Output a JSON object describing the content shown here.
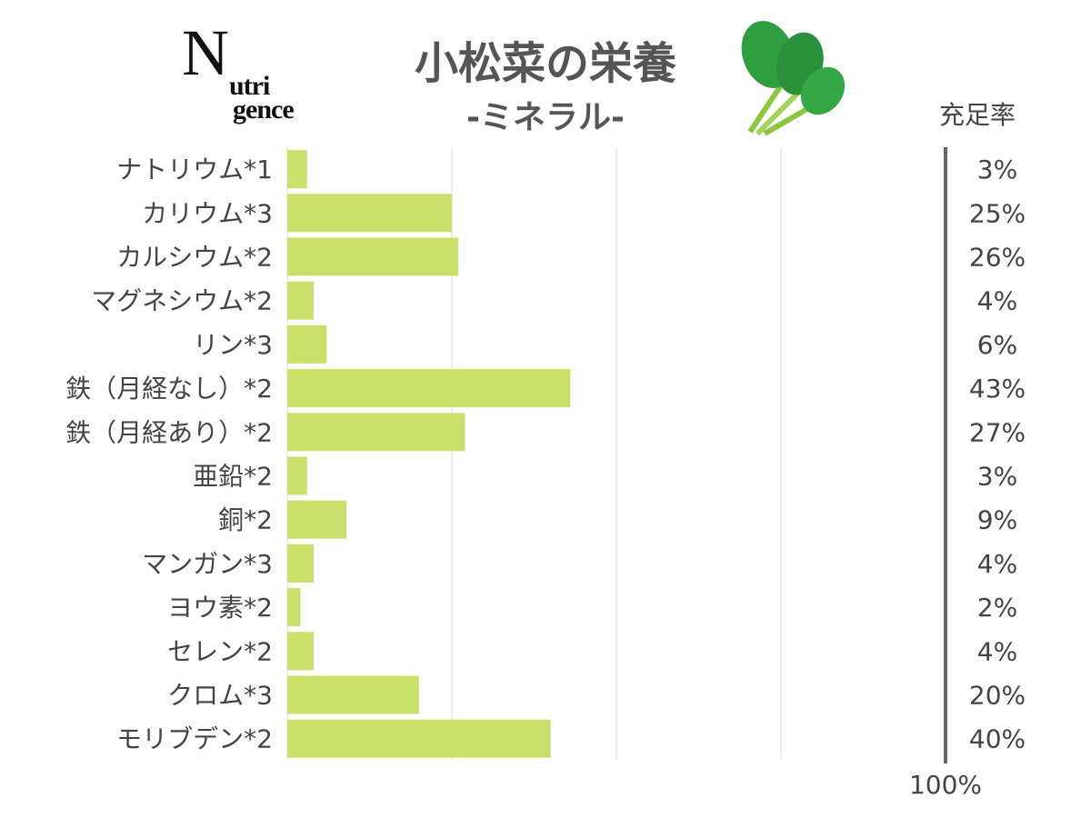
{
  "logo_text": "Nutrigence",
  "header": {
    "title": "小松菜の栄養",
    "subtitle": "-ミネラル-",
    "column_header": "充足率"
  },
  "chart_data": {
    "type": "bar",
    "orientation": "horizontal",
    "title": "小松菜の栄養",
    "subtitle": "-ミネラル-",
    "categories": [
      "ナトリウム*1",
      "カリウム*3",
      "カルシウム*2",
      "マグネシウム*2",
      "リン*3",
      "鉄（月経なし）*2",
      "鉄（月経あり）*2",
      "亜鉛*2",
      "銅*2",
      "マンガン*3",
      "ヨウ素*2",
      "セレン*2",
      "クロム*3",
      "モリブデン*2"
    ],
    "values": [
      3,
      25,
      26,
      4,
      6,
      43,
      27,
      3,
      9,
      4,
      2,
      4,
      20,
      40
    ],
    "value_labels": [
      "3%",
      "25%",
      "26%",
      "4%",
      "6%",
      "43%",
      "27%",
      "3%",
      "9%",
      "4%",
      "2%",
      "4%",
      "20%",
      "40%"
    ],
    "xlim": [
      0,
      100
    ],
    "max_label": "100%",
    "grid": true,
    "bar_color": "#c9e06a"
  }
}
